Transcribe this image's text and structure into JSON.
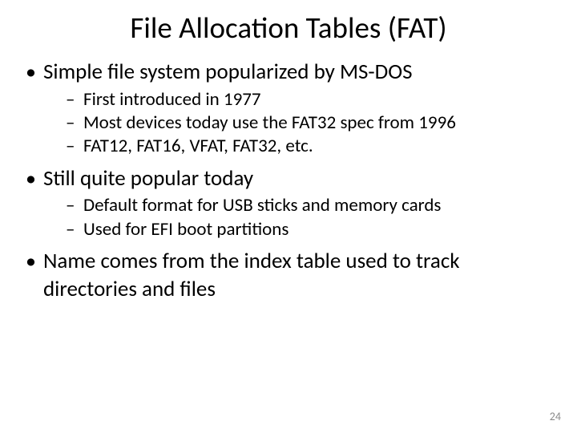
{
  "slide": {
    "title": "File Allocation Tables (FAT)",
    "bullets": [
      {
        "text": "Simple file system popularized by MS-DOS",
        "sub": [
          "First introduced in 1977",
          "Most devices today use the FAT32 spec from 1996",
          "FAT12, FAT16, VFAT, FAT32, etc."
        ]
      },
      {
        "text": "Still quite popular today",
        "sub": [
          "Default format for USB sticks and memory cards",
          "Used for EFI boot partitions"
        ]
      },
      {
        "text": "Name comes from the index table used to track directories and files",
        "sub": []
      }
    ],
    "page_number": "24",
    "colors": {
      "background": "#ffffff",
      "text": "#000000",
      "page_number": "#8a8a8a"
    },
    "fonts": {
      "title_size_pt": 37,
      "level1_size_pt": 27,
      "level2_size_pt": 23,
      "pagenum_size_pt": 14,
      "family": "Calibri"
    }
  }
}
